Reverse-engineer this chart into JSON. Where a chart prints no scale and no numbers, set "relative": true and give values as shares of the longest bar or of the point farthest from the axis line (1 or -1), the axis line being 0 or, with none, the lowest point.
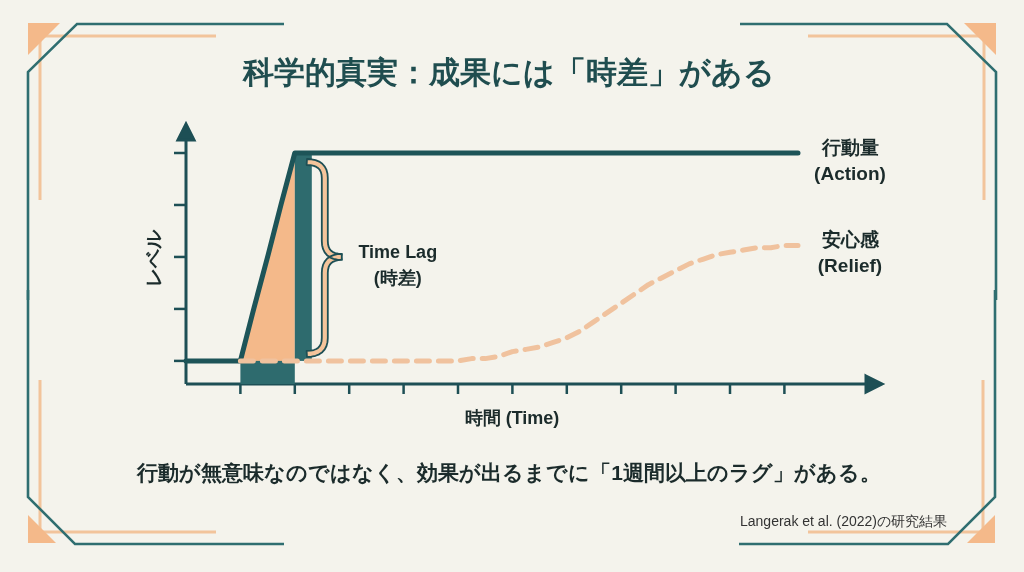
{
  "chart_data": {
    "type": "line",
    "title": "科学的真実：成果には「時差」がある",
    "xlabel": "時間 (Time)",
    "ylabel": "レベル",
    "relative": true,
    "categories": [
      null,
      null,
      null,
      null,
      null,
      null,
      null,
      null,
      null,
      null,
      null,
      null,
      null,
      null,
      null,
      null,
      null,
      null,
      null,
      null,
      null,
      null,
      null,
      null,
      null,
      null,
      null,
      null,
      null,
      null,
      null,
      null,
      null,
      null,
      null,
      null,
      null,
      null,
      null,
      null,
      null,
      null,
      null,
      null,
      null,
      null
    ],
    "series": [
      {
        "name": "行動量\n(Action)",
        "color": "#1d5458",
        "line_style": "solid",
        "values": [
          0.1,
          0.1,
          0.1,
          0.1,
          0.1,
          0.33,
          0.55,
          0.78,
          1,
          1,
          1,
          1,
          1,
          1,
          1,
          1,
          1,
          1,
          1,
          1,
          1,
          1,
          1,
          1,
          1,
          1,
          1,
          1,
          1,
          1,
          1,
          1,
          1,
          1,
          1,
          1,
          1,
          1,
          1,
          1,
          1,
          1,
          1,
          1,
          1,
          1
        ]
      },
      {
        "name": "安心感\n(Relief)",
        "color": "#f0c29e",
        "line_style": "dashed",
        "values": [
          null,
          null,
          null,
          null,
          0.1,
          0.1,
          0.1,
          0.1,
          0.1,
          0.1,
          0.1,
          0.1,
          0.1,
          0.1,
          0.1,
          0.1,
          0.1,
          0.1,
          0.1,
          0.1,
          0.1,
          0.11,
          0.11,
          0.12,
          0.14,
          0.15,
          0.16,
          0.18,
          0.2,
          0.23,
          0.27,
          0.31,
          0.35,
          0.39,
          0.43,
          0.46,
          0.49,
          0.52,
          0.54,
          0.56,
          0.57,
          0.58,
          0.59,
          0.59,
          0.6,
          0.6
        ]
      }
    ],
    "annotations": [
      "Time Lag\n(時差)",
      "行動が無意味なのではなく、効果が出るまでに「1週間以上のラグ」がある。",
      "Langerak et al. (2022)の研究結果"
    ]
  }
}
